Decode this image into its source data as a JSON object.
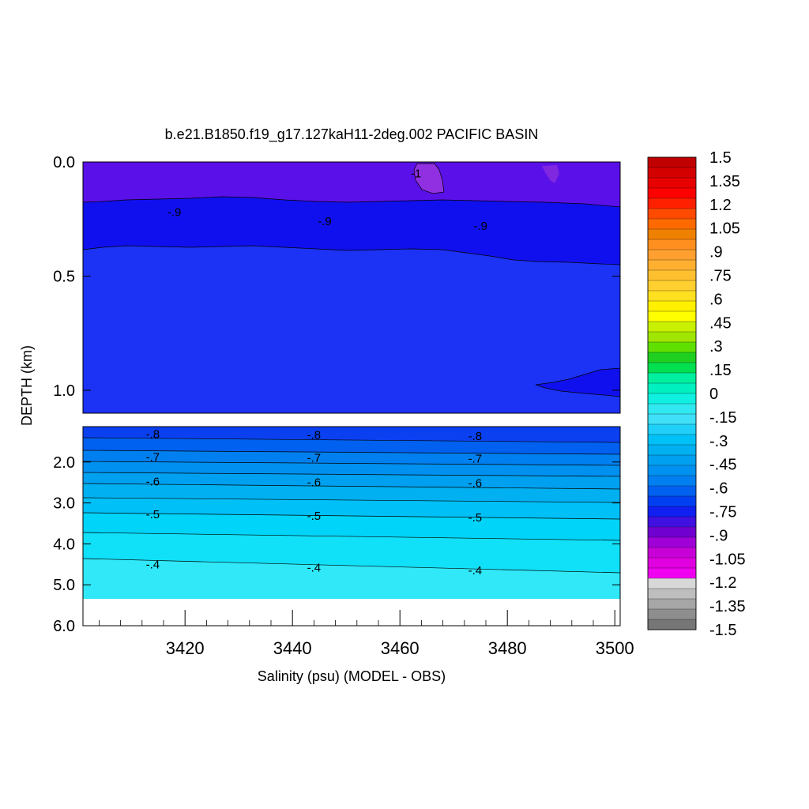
{
  "chart_data": {
    "type": "heatmap",
    "title": "b.e21.B1850.f19_g17.127kaH11-2deg.002 PACIFIC BASIN",
    "xlabel": "Salinity (psu) (MODEL - OBS)",
    "ylabel": "DEPTH (km)",
    "x_ticks": [
      "3420",
      "3440",
      "3460",
      "3480",
      "3500"
    ],
    "x_tick_values": [
      3420,
      3440,
      3460,
      3480,
      3500
    ],
    "xlim": [
      3401,
      3501
    ],
    "upper_panel": {
      "ylim": [
        0.0,
        1.1
      ],
      "y_ticks": [
        "0.0",
        "0.5",
        "1.0"
      ],
      "y_tick_values": [
        0.0,
        0.5,
        1.0
      ],
      "contour_labels": [
        {
          "text": "-.9",
          "x": 3418,
          "y": 0.22
        },
        {
          "text": "-.9",
          "x": 3446,
          "y": 0.26
        },
        {
          "text": "-.9",
          "x": 3475,
          "y": 0.28
        },
        {
          "text": "-1",
          "x": 3463,
          "y": 0.05
        }
      ]
    },
    "lower_panel": {
      "ylim": [
        1.0,
        6.0
      ],
      "y_ticks": [
        "2.0",
        "3.0",
        "4.0",
        "5.0",
        "6.0"
      ],
      "y_tick_values": [
        2.0,
        3.0,
        4.0,
        5.0,
        6.0
      ],
      "bottom_data_depth": 5.35,
      "contour_labels": [
        {
          "text": "-.8",
          "x": 3414,
          "y": 1.32
        },
        {
          "text": "-.8",
          "x": 3444,
          "y": 1.34
        },
        {
          "text": "-.8",
          "x": 3474,
          "y": 1.37
        },
        {
          "text": "-.7",
          "x": 3414,
          "y": 1.88
        },
        {
          "text": "-.7",
          "x": 3444,
          "y": 1.9
        },
        {
          "text": "-.7",
          "x": 3474,
          "y": 1.92
        },
        {
          "text": "-.6",
          "x": 3414,
          "y": 2.48
        },
        {
          "text": "-.6",
          "x": 3444,
          "y": 2.5
        },
        {
          "text": "-.6",
          "x": 3474,
          "y": 2.52
        },
        {
          "text": "-.5",
          "x": 3414,
          "y": 3.28
        },
        {
          "text": "-.5",
          "x": 3444,
          "y": 3.32
        },
        {
          "text": "-.5",
          "x": 3474,
          "y": 3.36
        },
        {
          "text": "-.4",
          "x": 3414,
          "y": 4.5
        },
        {
          "text": "-.4",
          "x": 3444,
          "y": 4.58
        },
        {
          "text": "-.4",
          "x": 3474,
          "y": 4.65
        }
      ]
    },
    "colorbar": {
      "labels": [
        "1.5",
        "1.35",
        "1.2",
        "1.05",
        ".9",
        ".75",
        ".6",
        ".45",
        ".3",
        ".15",
        "0",
        "-.15",
        "-.3",
        "-.45",
        "-.6",
        "-.75",
        "-.9",
        "-1.05",
        "-1.2",
        "-1.35",
        "-1.5"
      ],
      "label_values": [
        1.5,
        1.35,
        1.2,
        1.05,
        0.9,
        0.75,
        0.6,
        0.45,
        0.3,
        0.15,
        0,
        -0.15,
        -0.3,
        -0.45,
        -0.6,
        -0.75,
        -0.9,
        -1.05,
        -1.2,
        -1.35,
        -1.5
      ],
      "colors": [
        "#c00000",
        "#d40000",
        "#e80000",
        "#ff0000",
        "#ff2000",
        "#ff4a00",
        "#ff6a00",
        "#f08000",
        "#ff9020",
        "#ffa030",
        "#ffb030",
        "#ffc030",
        "#ffd030",
        "#ffe020",
        "#fff000",
        "#ffff00",
        "#c8f000",
        "#a0e600",
        "#60e000",
        "#20d020",
        "#00e050",
        "#00f0a0",
        "#00f0c0",
        "#10f0e0",
        "#30e8f0",
        "#40e0f8",
        "#20d0f8",
        "#00c0f8",
        "#00b0f0",
        "#00a0f0",
        "#0090f0",
        "#0080f0",
        "#0060f0",
        "#0040f0",
        "#1020f0",
        "#4010e0",
        "#7000d0",
        "#a000d8",
        "#c800d8",
        "#e000e0",
        "#f000f0",
        "#d8d8d8",
        "#bebebe",
        "#a6a6a6",
        "#8e8e8e",
        "#767676"
      ]
    }
  }
}
